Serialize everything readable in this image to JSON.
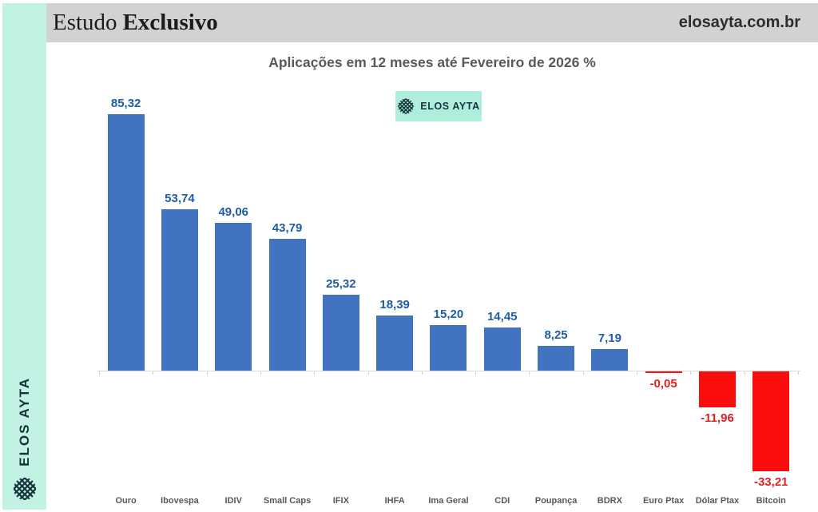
{
  "sidebar": {
    "brand": "ELOS AYTA"
  },
  "header": {
    "brand_regular": "Estudo",
    "brand_bold": "Exclusivo",
    "website": "elosayta.com.br"
  },
  "badge": {
    "label": "ELOS AYTA"
  },
  "chart_data": {
    "type": "bar",
    "title": "Aplicações em 12 meses até Fevereiro de 2026 %",
    "categories": [
      "Ouro",
      "Ibovespa",
      "IDIV",
      "Small Caps",
      "IFIX",
      "IHFA",
      "Ima Geral",
      "CDI",
      "Poupança",
      "BDRX",
      "Euro Ptax",
      "Dólar Ptax",
      "Bitcoin"
    ],
    "values": [
      85.32,
      53.74,
      49.06,
      43.79,
      25.32,
      18.39,
      15.2,
      14.45,
      8.25,
      7.19,
      -0.05,
      -11.96,
      -33.21
    ],
    "value_labels": [
      "85,32",
      "53,74",
      "49,06",
      "43,79",
      "25,32",
      "18,39",
      "15,20",
      "14,45",
      "8,25",
      "7,19",
      "-0,05",
      "-11,96",
      "-33,21"
    ],
    "xlabel": "",
    "ylabel": "",
    "unit": "%",
    "ylim": [
      -40,
      95
    ],
    "grid": false,
    "legend_position": "top-center",
    "colors": {
      "positive": "#4273C1",
      "negative": "#F90D0D",
      "positive_label": "#1E5CA8",
      "negative_label": "#E02020",
      "category_label": "#595959",
      "sidebar_mint": "#C2F2E3",
      "badge_mint": "#AFEEDC",
      "header_gray": "#D2D2D2"
    }
  }
}
